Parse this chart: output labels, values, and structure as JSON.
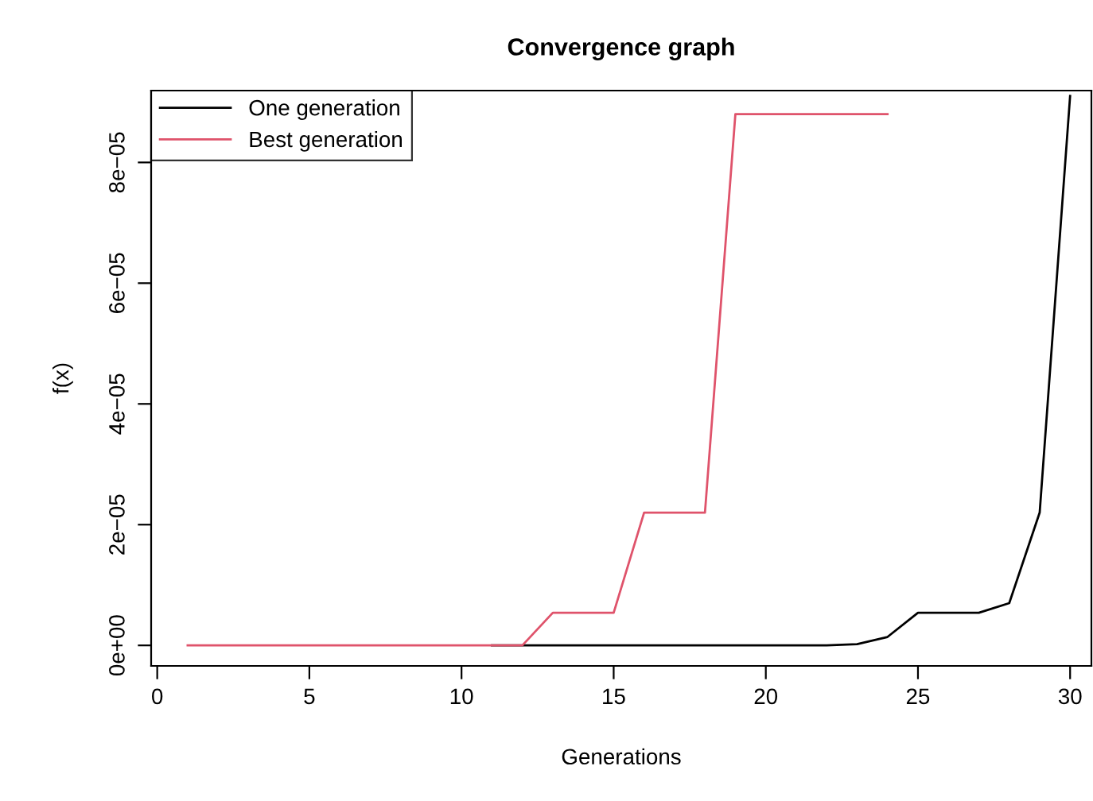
{
  "chart_data": {
    "type": "line",
    "title": "Convergence graph",
    "xlabel": "Generations",
    "ylabel": "f(x)",
    "x": [
      1,
      2,
      3,
      4,
      5,
      6,
      7,
      8,
      9,
      10,
      11,
      12,
      13,
      14,
      15,
      16,
      17,
      18,
      19,
      20,
      21,
      22,
      23,
      24,
      25,
      26,
      27,
      28,
      29,
      30
    ],
    "series": [
      {
        "name": "One generation",
        "color": "#000000",
        "values": [
          null,
          null,
          null,
          null,
          null,
          null,
          null,
          null,
          null,
          null,
          0,
          0,
          0,
          0,
          0,
          0,
          0,
          0,
          0,
          0,
          0,
          0,
          2e-07,
          1.4e-06,
          5.4e-06,
          5.4e-06,
          5.4e-06,
          7e-06,
          2.2e-05,
          9.1e-05
        ]
      },
      {
        "name": "Best generation",
        "color": "#df536b",
        "values": [
          0,
          0,
          0,
          0,
          0,
          0,
          0,
          0,
          0,
          0,
          0,
          0,
          5.4e-06,
          5.4e-06,
          5.4e-06,
          2.2e-05,
          2.2e-05,
          2.2e-05,
          8.8e-05,
          8.8e-05,
          8.8e-05,
          8.8e-05,
          8.8e-05,
          8.8e-05,
          null,
          null,
          null,
          null,
          null,
          null
        ]
      }
    ],
    "xlim": [
      -0.2,
      30.7
    ],
    "ylim": [
      -3.4e-06,
      9.19e-05
    ],
    "xticks": [
      0,
      5,
      10,
      15,
      20,
      25,
      30
    ],
    "yticks": [
      {
        "value": 0,
        "label": "0e+00"
      },
      {
        "value": 2e-05,
        "label": "2e−05"
      },
      {
        "value": 4e-05,
        "label": "4e−05"
      },
      {
        "value": 6e-05,
        "label": "6e−05"
      },
      {
        "value": 8e-05,
        "label": "8e−05"
      }
    ],
    "grid": false,
    "legend": "top left",
    "marker": "none",
    "line_style": "solid"
  }
}
